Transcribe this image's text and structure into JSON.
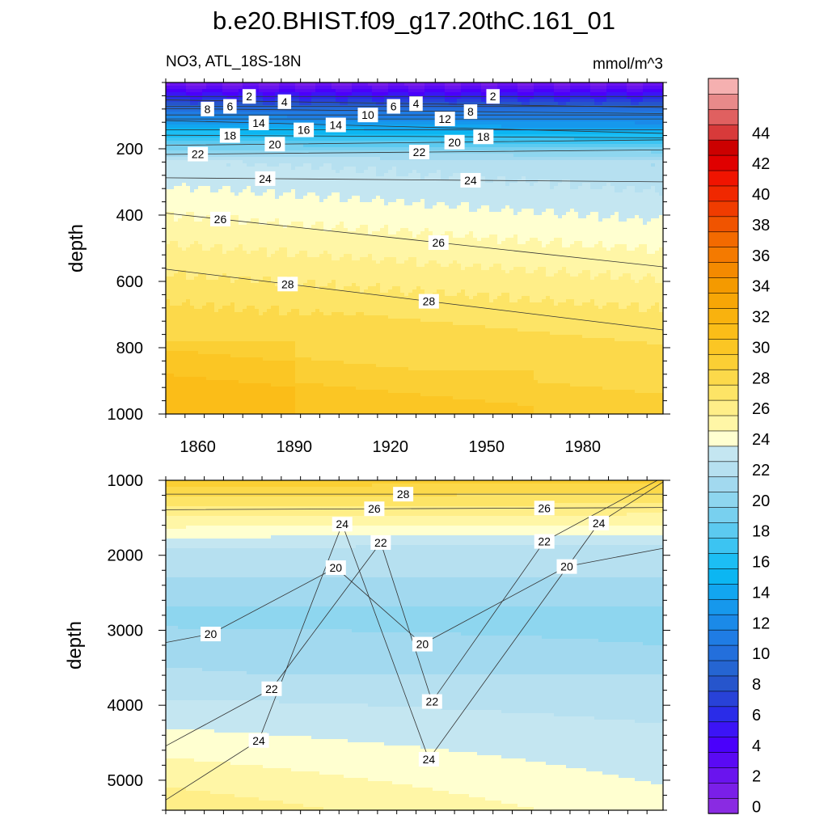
{
  "chart_data": {
    "type": "contour",
    "title": "b.e20.BHIST.f09_g17.20thC.161_01",
    "variable_label": "NO3, ATL_18S-18N",
    "units_label": "mmol/m^3",
    "x": {
      "range": [
        1850,
        2005
      ],
      "tick_values": [
        1860,
        1890,
        1920,
        1950,
        1980
      ],
      "tick_labels": [
        "1860",
        "1890",
        "1920",
        "1950",
        "1980"
      ]
    },
    "panels": [
      {
        "name": "upper",
        "ylabel": "depth",
        "ylim": [
          0,
          1000
        ],
        "inverted": true,
        "tick_values": [
          200,
          400,
          600,
          800,
          1000
        ],
        "tick_labels": [
          "200",
          "400",
          "600",
          "800",
          "1000"
        ],
        "contour_interval": 1,
        "contour_labels": [
          {
            "text": "2",
            "year": 1876,
            "depth": 42
          },
          {
            "text": "4",
            "year": 1887,
            "depth": 58
          },
          {
            "text": "8",
            "year": 1863,
            "depth": 80
          },
          {
            "text": "6",
            "year": 1870,
            "depth": 72
          },
          {
            "text": "14",
            "year": 1879,
            "depth": 122
          },
          {
            "text": "18",
            "year": 1870,
            "depth": 160
          },
          {
            "text": "16",
            "year": 1893,
            "depth": 143
          },
          {
            "text": "14",
            "year": 1903,
            "depth": 128
          },
          {
            "text": "10",
            "year": 1913,
            "depth": 98
          },
          {
            "text": "6",
            "year": 1921,
            "depth": 72
          },
          {
            "text": "4",
            "year": 1928,
            "depth": 64
          },
          {
            "text": "2",
            "year": 1952,
            "depth": 42
          },
          {
            "text": "12",
            "year": 1937,
            "depth": 110
          },
          {
            "text": "8",
            "year": 1945,
            "depth": 88
          },
          {
            "text": "20",
            "year": 1884,
            "depth": 186
          },
          {
            "text": "18",
            "year": 1949,
            "depth": 164
          },
          {
            "text": "20",
            "year": 1940,
            "depth": 180
          },
          {
            "text": "22",
            "year": 1860,
            "depth": 216
          },
          {
            "text": "22",
            "year": 1929,
            "depth": 210
          },
          {
            "text": "24",
            "year": 1881,
            "depth": 290
          },
          {
            "text": "24",
            "year": 1945,
            "depth": 295
          },
          {
            "text": "26",
            "year": 1867,
            "depth": 412
          },
          {
            "text": "26",
            "year": 1935,
            "depth": 483
          },
          {
            "text": "28",
            "year": 1888,
            "depth": 608
          },
          {
            "text": "28",
            "year": 1932,
            "depth": 660
          }
        ]
      },
      {
        "name": "lower",
        "ylabel": "depth",
        "ylim": [
          1000,
          5400
        ],
        "inverted": true,
        "tick_values": [
          1000,
          2000,
          3000,
          4000,
          5000
        ],
        "tick_labels": [
          "1000",
          "2000",
          "3000",
          "4000",
          "5000"
        ],
        "contour_interval": 1,
        "contour_labels": [
          {
            "text": "28",
            "year": 1924,
            "depth": 1185
          },
          {
            "text": "26",
            "year": 1915,
            "depth": 1380
          },
          {
            "text": "24",
            "year": 1905,
            "depth": 1585
          },
          {
            "text": "22",
            "year": 1917,
            "depth": 1830
          },
          {
            "text": "26",
            "year": 1968,
            "depth": 1370
          },
          {
            "text": "24",
            "year": 1985,
            "depth": 1570
          },
          {
            "text": "22",
            "year": 1968,
            "depth": 1815
          },
          {
            "text": "20",
            "year": 1903,
            "depth": 2165
          },
          {
            "text": "20",
            "year": 1975,
            "depth": 2150
          },
          {
            "text": "20",
            "year": 1864,
            "depth": 3050
          },
          {
            "text": "20",
            "year": 1930,
            "depth": 3185
          },
          {
            "text": "22",
            "year": 1883,
            "depth": 3780
          },
          {
            "text": "22",
            "year": 1933,
            "depth": 3950
          },
          {
            "text": "24",
            "year": 1879,
            "depth": 4470
          },
          {
            "text": "24",
            "year": 1932,
            "depth": 4720
          }
        ]
      }
    ],
    "colorbar": {
      "range": [
        -1,
        46
      ],
      "levels": [
        -1,
        0,
        1,
        2,
        3,
        4,
        5,
        6,
        7,
        8,
        9,
        10,
        11,
        12,
        13,
        14,
        15,
        16,
        17,
        18,
        19,
        20,
        21,
        22,
        23,
        24,
        25,
        26,
        27,
        28,
        29,
        30,
        31,
        32,
        33,
        34,
        35,
        36,
        37,
        38,
        39,
        40,
        41,
        42,
        43,
        44,
        45,
        46
      ],
      "tick_values": [
        0,
        2,
        4,
        6,
        8,
        10,
        12,
        14,
        16,
        18,
        20,
        22,
        24,
        26,
        28,
        30,
        32,
        34,
        36,
        38,
        40,
        42,
        44
      ],
      "tick_labels": [
        "0",
        "2",
        "4",
        "6",
        "8",
        "10",
        "12",
        "14",
        "16",
        "18",
        "20",
        "22",
        "24",
        "26",
        "28",
        "30",
        "32",
        "34",
        "36",
        "38",
        "40",
        "42",
        "44"
      ]
    }
  }
}
